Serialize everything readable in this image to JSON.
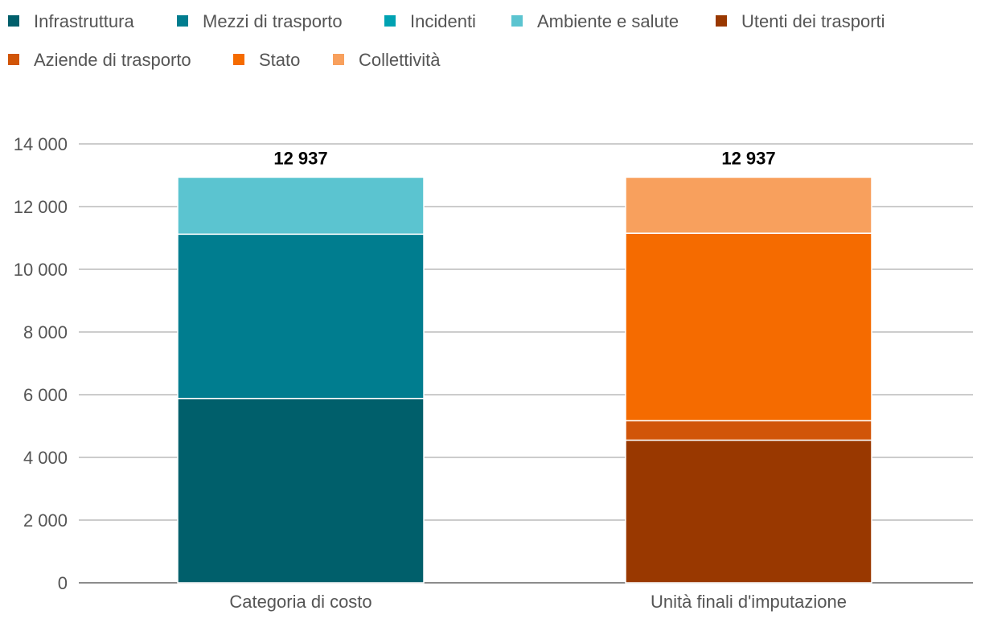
{
  "chart_data": {
    "type": "bar",
    "stacked": true,
    "categories": [
      "Categoria di costo",
      "Unità finali d'imputazione"
    ],
    "totals": [
      "12 937",
      "12 937"
    ],
    "ylim": [
      0,
      14000
    ],
    "yticks": [
      0,
      2000,
      4000,
      6000,
      8000,
      10000,
      12000,
      14000
    ],
    "ytick_labels": [
      "0",
      "2 000",
      "4 000",
      "6 000",
      "8 000",
      "10 000",
      "12 000",
      "14 000"
    ],
    "grid": true,
    "legend_position": "top",
    "series": [
      {
        "name": "Infrastruttura",
        "color": "#005f6b",
        "values": [
          5880,
          0
        ]
      },
      {
        "name": "Mezzi di trasporto",
        "color": "#007d8f",
        "values": [
          5240,
          0
        ]
      },
      {
        "name": "Incidenti",
        "color": "#00a2b2",
        "values": [
          0,
          0
        ]
      },
      {
        "name": "Ambiente e salute",
        "color": "#5bc4d0",
        "values": [
          1817,
          0
        ]
      },
      {
        "name": "Utenti dei trasporti",
        "color": "#993800",
        "values": [
          0,
          4550
        ]
      },
      {
        "name": "Aziende di trasporto",
        "color": "#d15508",
        "values": [
          0,
          620
        ]
      },
      {
        "name": "Stato",
        "color": "#f56b00",
        "values": [
          0,
          5980
        ]
      },
      {
        "name": "Collettività",
        "color": "#f8a05d",
        "values": [
          0,
          1787
        ]
      }
    ]
  }
}
